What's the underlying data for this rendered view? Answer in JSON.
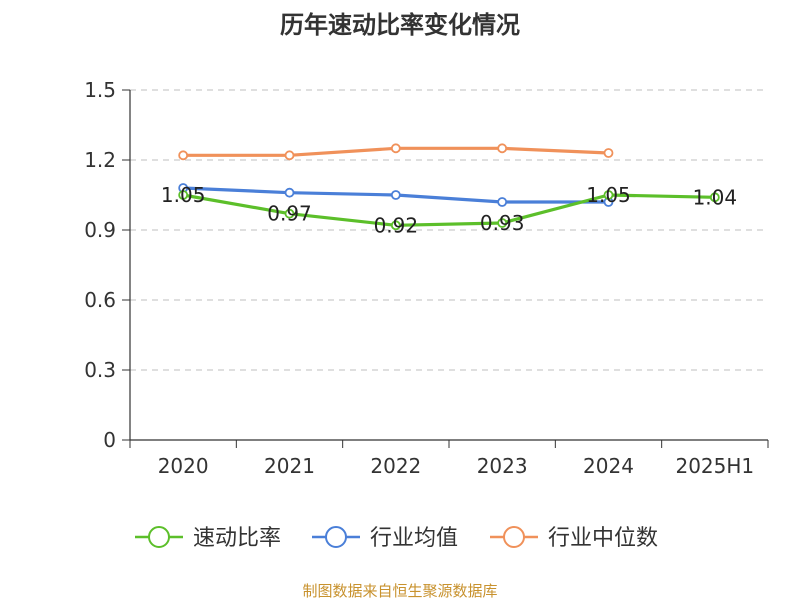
{
  "chart_data": {
    "type": "line",
    "title": "历年速动比率变化情况",
    "categories": [
      "2020",
      "2021",
      "2022",
      "2023",
      "2024",
      "2025H1"
    ],
    "ylim": [
      0,
      1.5
    ],
    "yticks": [
      "0",
      "0.3",
      "0.6",
      "0.9",
      "1.2",
      "1.5"
    ],
    "grid": true,
    "legend_position": "bottom",
    "series": [
      {
        "name": "速动比率",
        "color": "#5cbf2a",
        "values": [
          1.05,
          0.97,
          0.92,
          0.93,
          1.05,
          1.04
        ],
        "labels": [
          "1.05",
          "0.97",
          "0.92",
          "0.93",
          "1.05",
          "1.04"
        ]
      },
      {
        "name": "行业均值",
        "color": "#4a7fd8",
        "values": [
          1.08,
          1.06,
          1.05,
          1.02,
          1.02,
          null
        ]
      },
      {
        "name": "行业中位数",
        "color": "#f0915a",
        "values": [
          1.22,
          1.22,
          1.25,
          1.25,
          1.23,
          null
        ]
      }
    ],
    "source": "制图数据来自恒生聚源数据库",
    "source_color": "#c8922e"
  }
}
